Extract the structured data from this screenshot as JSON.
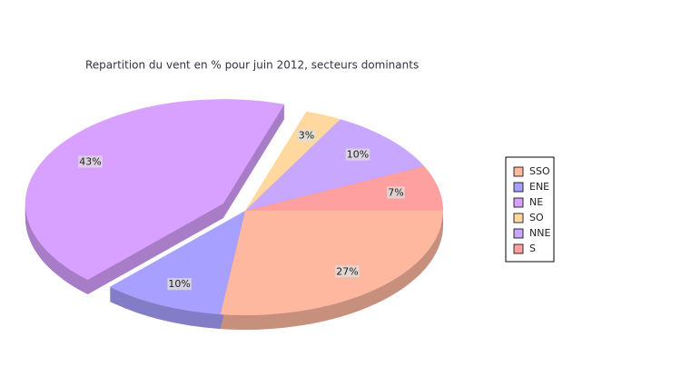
{
  "chart_data": {
    "type": "pie",
    "title": "Repartition du vent en % pour juin 2012, secteurs dominants",
    "categories": [
      "SSO",
      "ENE",
      "NE",
      "SO",
      "NNE",
      "S"
    ],
    "values": [
      27,
      10,
      43,
      3,
      10,
      7
    ],
    "value_labels": [
      "27%",
      "10%",
      "43%",
      "3%",
      "10%",
      "7%"
    ],
    "colors": [
      "#ffb8a0",
      "#a8a0ff",
      "#d8a0ff",
      "#ffd8a0",
      "#c8a8ff",
      "#ffa0a0"
    ],
    "exploded": "NE",
    "legend": "right"
  }
}
